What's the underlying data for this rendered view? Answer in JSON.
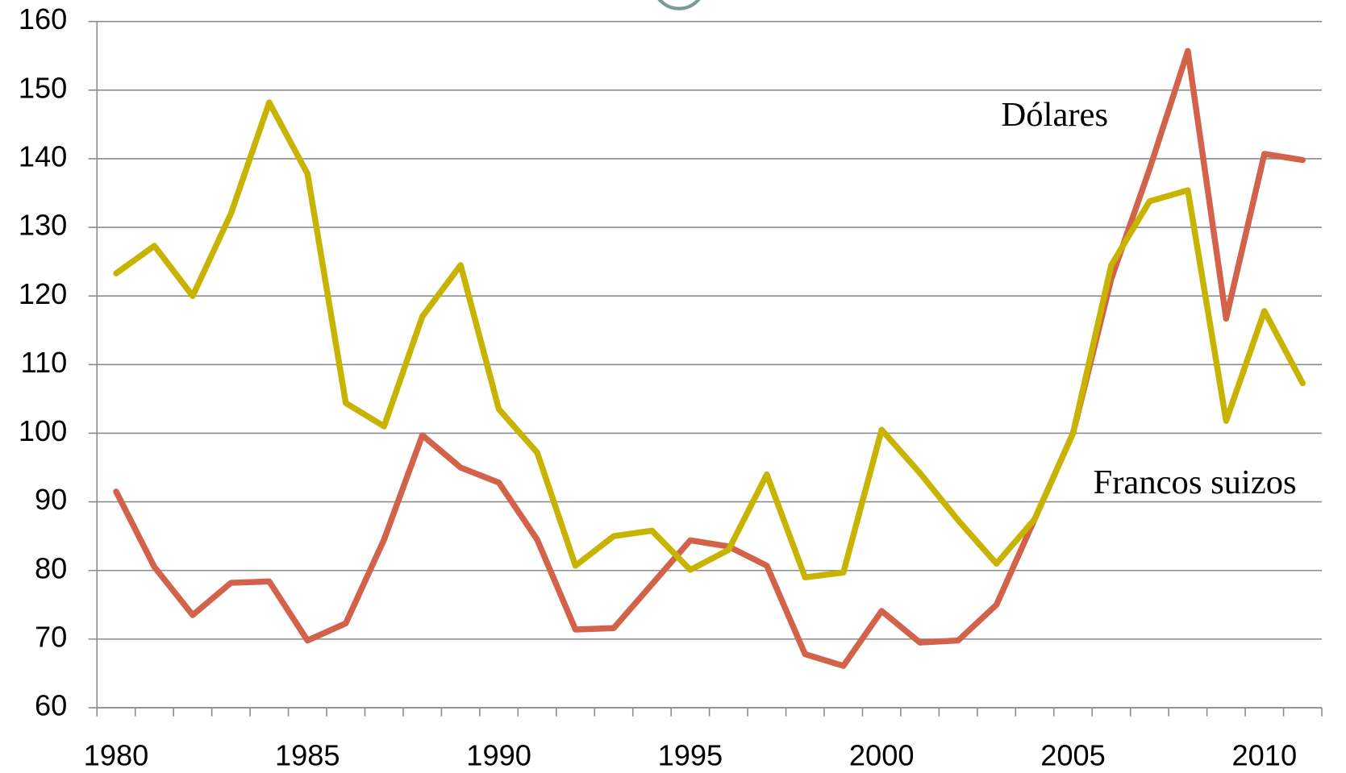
{
  "chart_data": {
    "type": "line",
    "x": [
      1980,
      1981,
      1982,
      1983,
      1984,
      1985,
      1986,
      1987,
      1988,
      1989,
      1990,
      1991,
      1992,
      1993,
      1994,
      1995,
      1996,
      1997,
      1998,
      1999,
      2000,
      2001,
      2002,
      2003,
      2004,
      2005,
      2006,
      2007,
      2008,
      2009,
      2010,
      2011
    ],
    "series": [
      {
        "name": "Dólares",
        "color": "#d2634a",
        "values": [
          91.5,
          80.5,
          73.5,
          78.2,
          78.4,
          69.8,
          72.3,
          84.5,
          99.7,
          95,
          92.8,
          84.5,
          71.4,
          71.6,
          78,
          84.4,
          83.5,
          80.7,
          67.8,
          66.1,
          74.1,
          69.5,
          69.8,
          75,
          87.5,
          100,
          122.5,
          138.5,
          155.7,
          116.7,
          140.7,
          139.8
        ]
      },
      {
        "name": "Francos suizos",
        "color": "#c8b400",
        "values": [
          123.3,
          127.3,
          120,
          132,
          148.2,
          137.8,
          104.4,
          101,
          117,
          124.5,
          103.5,
          97.2,
          80.7,
          85,
          85.8,
          80.1,
          83,
          94,
          79,
          79.7,
          100.5,
          94.2,
          87.3,
          81,
          87.5,
          100,
          124.5,
          133.8,
          135.4,
          101.8,
          117.8,
          107.3
        ]
      }
    ],
    "xlim": [
      1979.5,
      2011.5
    ],
    "xticks": [
      1980,
      1985,
      1990,
      1995,
      2000,
      2005,
      2010
    ],
    "ylim": [
      60,
      160
    ],
    "yticks": [
      60,
      70,
      80,
      90,
      100,
      110,
      120,
      130,
      140,
      150,
      160
    ],
    "grid": true
  }
}
